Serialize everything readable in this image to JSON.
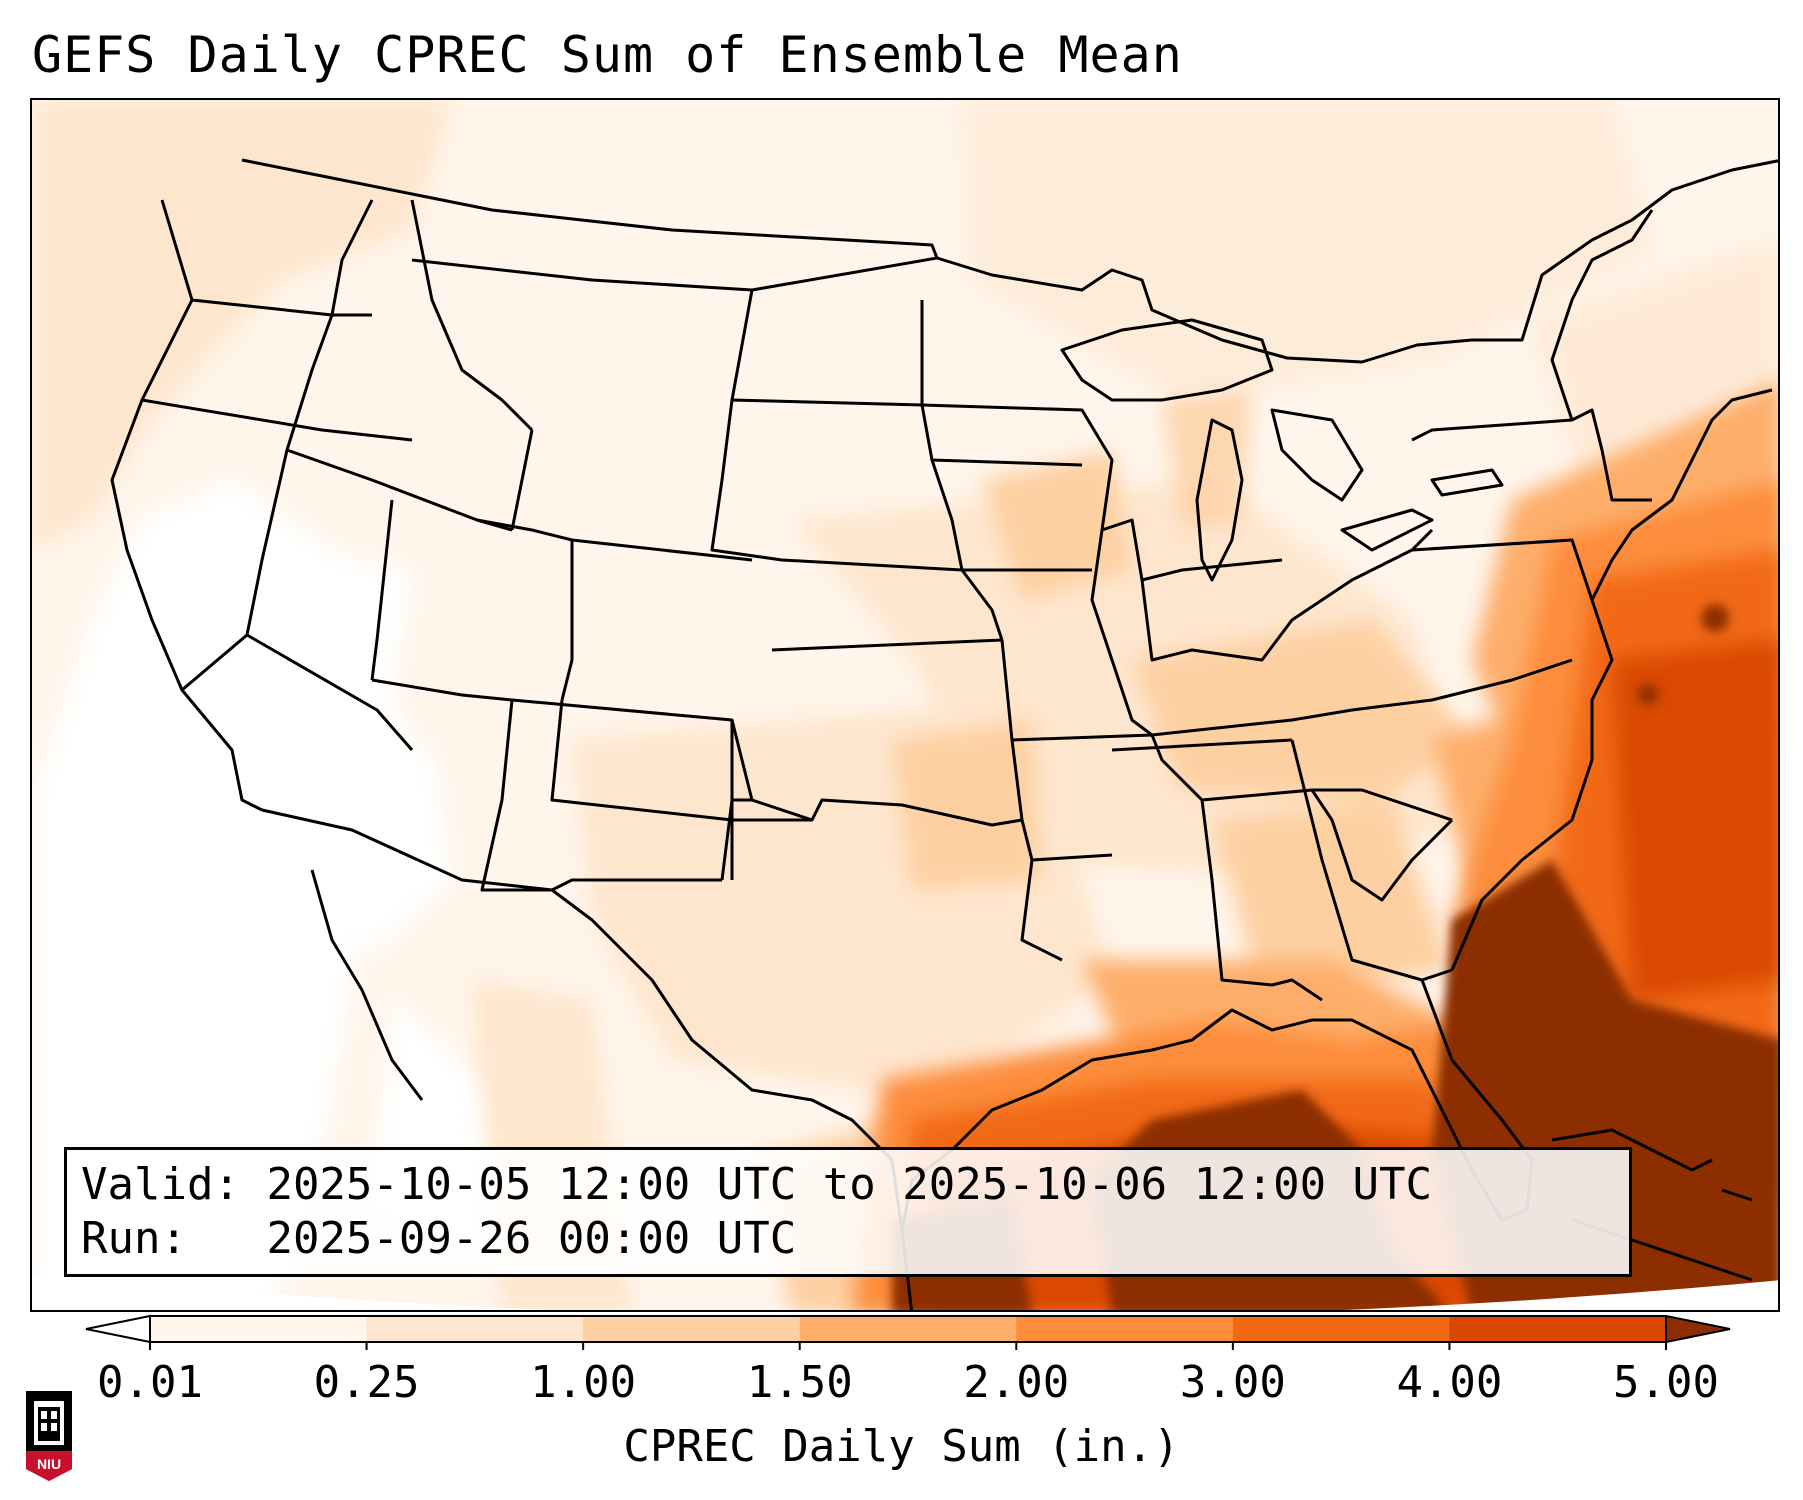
{
  "title": "GEFS Daily CPREC Sum of Ensemble Mean",
  "info": {
    "valid_label": "Valid:",
    "valid_value": "2025-10-05 12:00 UTC to 2025-10-06 12:00 UTC",
    "run_label": "Run:",
    "run_value": "2025-09-26 00:00 UTC"
  },
  "colorbar": {
    "label": "CPREC Daily Sum (in.)",
    "ticks": [
      "0.01",
      "0.25",
      "1.00",
      "1.50",
      "2.00",
      "3.00",
      "4.00",
      "5.00"
    ],
    "colors": [
      "#ffffff",
      "#fff5eb",
      "#fee6ce",
      "#fdd0a2",
      "#fdae6b",
      "#fd8d3c",
      "#f16913",
      "#d94801",
      "#8c2d04"
    ],
    "extend": "both"
  },
  "logo": {
    "text": "NIU",
    "color": "#c8102e"
  },
  "map": {
    "projection": "Lambert conformal, CONUS",
    "field": "CPREC daily sum",
    "heavy_region": "Gulf of Mexico, Southeast US coast and western Atlantic",
    "colors": {
      "land_bg": "#fff5eb",
      "border": "#000000",
      "max_fill": "#8c2d04"
    }
  }
}
